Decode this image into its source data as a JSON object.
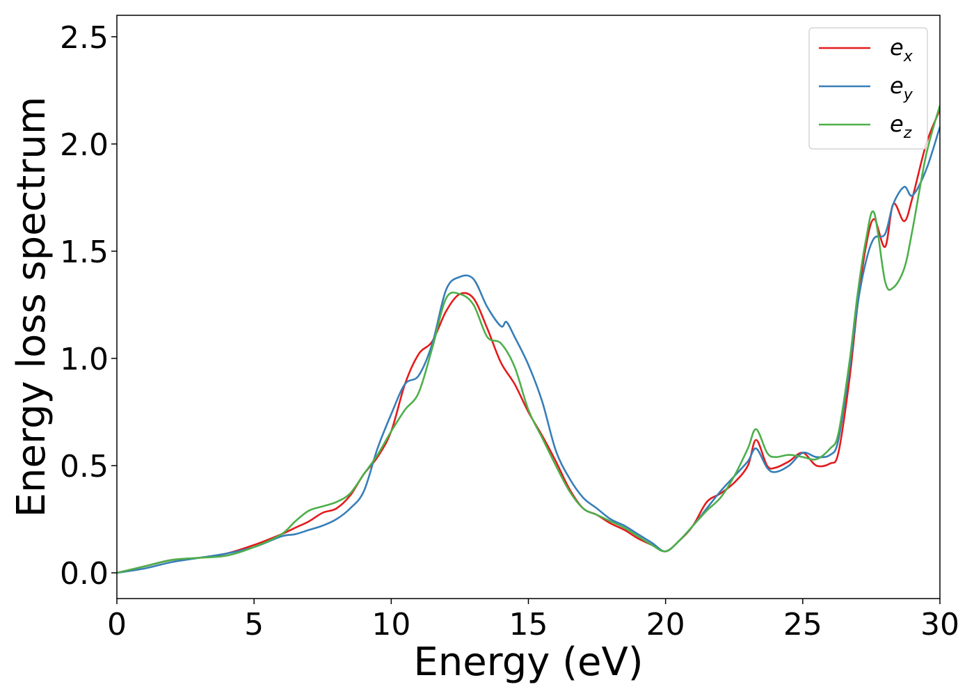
{
  "chart_data": {
    "type": "line",
    "title": "",
    "xlabel": "Energy (eV)",
    "ylabel": "Energy loss spectrum",
    "xlim": [
      0,
      30
    ],
    "ylim": [
      -0.12,
      2.6
    ],
    "xticks": [
      0,
      5,
      10,
      15,
      20,
      25,
      30
    ],
    "xtick_labels": [
      "0",
      "5",
      "10",
      "15",
      "20",
      "25",
      "30"
    ],
    "yticks": [
      0.0,
      0.5,
      1.0,
      1.5,
      2.0,
      2.5
    ],
    "ytick_labels": [
      "0.0",
      "0.5",
      "1.0",
      "1.5",
      "2.0",
      "2.5"
    ],
    "grid": false,
    "legend_position": "top-right",
    "series": [
      {
        "name": "e",
        "subscript": "x",
        "color": "#e41a1c",
        "x": [
          0,
          1,
          2,
          3,
          4,
          5,
          6,
          6.5,
          7,
          7.5,
          8,
          8.5,
          9,
          9.5,
          10,
          10.5,
          11,
          11.5,
          12,
          12.5,
          13,
          13.5,
          14,
          14.5,
          15,
          15.5,
          16,
          16.5,
          17,
          17.5,
          18,
          18.5,
          19,
          19.5,
          20,
          20.5,
          21,
          21.5,
          22,
          22.5,
          23,
          23.3,
          23.7,
          24,
          24.5,
          25,
          25.5,
          26,
          26.3,
          26.7,
          27,
          27.3,
          27.6,
          28,
          28.3,
          28.7,
          29,
          29.5,
          30
        ],
        "y": [
          0.0,
          0.03,
          0.06,
          0.07,
          0.09,
          0.13,
          0.18,
          0.21,
          0.24,
          0.28,
          0.3,
          0.36,
          0.46,
          0.54,
          0.66,
          0.88,
          1.02,
          1.08,
          1.22,
          1.3,
          1.28,
          1.14,
          0.98,
          0.88,
          0.75,
          0.64,
          0.52,
          0.39,
          0.3,
          0.27,
          0.23,
          0.2,
          0.16,
          0.13,
          0.1,
          0.15,
          0.22,
          0.33,
          0.37,
          0.42,
          0.5,
          0.62,
          0.5,
          0.49,
          0.52,
          0.56,
          0.5,
          0.51,
          0.56,
          0.9,
          1.25,
          1.52,
          1.65,
          1.52,
          1.72,
          1.64,
          1.75,
          2.0,
          2.16
        ]
      },
      {
        "name": "e",
        "subscript": "y",
        "color": "#377eb8",
        "x": [
          0,
          1,
          2,
          3,
          4,
          5,
          6,
          6.5,
          7,
          7.5,
          8,
          8.5,
          9,
          9.5,
          10,
          10.5,
          11,
          11.5,
          12,
          12.5,
          13,
          13.5,
          14,
          14.2,
          14.5,
          15,
          15.5,
          16,
          16.5,
          17,
          17.5,
          18,
          18.5,
          19,
          19.5,
          20,
          20.5,
          21,
          21.5,
          22,
          22.5,
          23,
          23.3,
          23.7,
          24,
          24.5,
          25,
          25.5,
          26,
          26.3,
          26.7,
          27,
          27.3,
          27.6,
          28,
          28.3,
          28.7,
          29,
          29.5,
          30
        ],
        "y": [
          0.0,
          0.02,
          0.05,
          0.07,
          0.09,
          0.12,
          0.17,
          0.18,
          0.2,
          0.22,
          0.25,
          0.3,
          0.38,
          0.58,
          0.74,
          0.88,
          0.92,
          1.07,
          1.32,
          1.38,
          1.37,
          1.24,
          1.15,
          1.17,
          1.1,
          0.97,
          0.8,
          0.57,
          0.44,
          0.35,
          0.3,
          0.25,
          0.22,
          0.18,
          0.14,
          0.1,
          0.15,
          0.22,
          0.3,
          0.38,
          0.45,
          0.52,
          0.58,
          0.49,
          0.47,
          0.5,
          0.56,
          0.54,
          0.55,
          0.62,
          0.95,
          1.25,
          1.45,
          1.56,
          1.58,
          1.72,
          1.8,
          1.76,
          1.88,
          2.08
        ]
      },
      {
        "name": "e",
        "subscript": "z",
        "color": "#4daf4a",
        "x": [
          0,
          1,
          2,
          3,
          4,
          5,
          6,
          6.5,
          7,
          7.5,
          8,
          8.5,
          9,
          9.5,
          10,
          10.5,
          11,
          11.5,
          12,
          12.5,
          13,
          13.5,
          14,
          14.5,
          15,
          15.5,
          16,
          16.5,
          17,
          17.5,
          18,
          18.5,
          19,
          19.5,
          20,
          20.5,
          21,
          21.5,
          22,
          22.5,
          23,
          23.3,
          23.7,
          24,
          24.5,
          25,
          25.5,
          26,
          26.3,
          26.7,
          27,
          27.3,
          27.6,
          28,
          28.3,
          28.7,
          29,
          29.5,
          30
        ],
        "y": [
          0.0,
          0.03,
          0.06,
          0.07,
          0.08,
          0.12,
          0.18,
          0.24,
          0.29,
          0.31,
          0.33,
          0.37,
          0.46,
          0.55,
          0.66,
          0.76,
          0.84,
          1.05,
          1.28,
          1.3,
          1.25,
          1.1,
          1.07,
          0.96,
          0.76,
          0.63,
          0.5,
          0.38,
          0.3,
          0.27,
          0.24,
          0.21,
          0.17,
          0.13,
          0.1,
          0.15,
          0.22,
          0.29,
          0.35,
          0.45,
          0.58,
          0.67,
          0.56,
          0.54,
          0.55,
          0.54,
          0.53,
          0.58,
          0.65,
          0.98,
          1.3,
          1.55,
          1.68,
          1.36,
          1.33,
          1.42,
          1.6,
          1.95,
          2.18
        ]
      }
    ]
  }
}
